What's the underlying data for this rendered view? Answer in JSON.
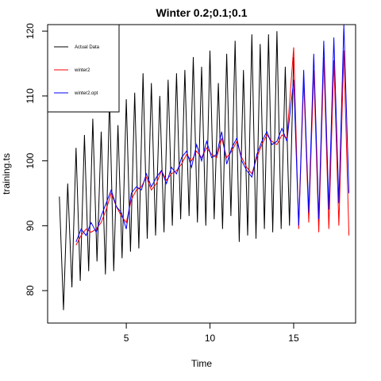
{
  "chart_data": {
    "type": "line",
    "title": "Winter 0.2;0.1;0.1",
    "xlabel": "Time",
    "ylabel": "training.ts",
    "xlim": [
      0.3,
      18.7
    ],
    "ylim": [
      75,
      121
    ],
    "xticks": [
      5,
      10,
      15
    ],
    "yticks": [
      80,
      90,
      100,
      110,
      120
    ],
    "grid": false,
    "legend": {
      "placement": "top-left",
      "entries": [
        {
          "name": "Actual Data",
          "color": "#000000"
        },
        {
          "name": "winter2",
          "color": "#ff0000"
        },
        {
          "name": "winter2.opt",
          "color": "#0000ff"
        }
      ]
    },
    "series": [
      {
        "name": "Actual Data",
        "color": "#000000",
        "x": [
          1.0,
          1.25,
          1.5,
          1.75,
          2.0,
          2.25,
          2.5,
          2.75,
          3.0,
          3.25,
          3.5,
          3.75,
          4.0,
          4.25,
          4.5,
          4.75,
          5.0,
          5.25,
          5.5,
          5.75,
          6.0,
          6.25,
          6.5,
          6.75,
          7.0,
          7.25,
          7.5,
          7.75,
          8.0,
          8.25,
          8.5,
          8.75,
          9.0,
          9.25,
          9.5,
          9.75,
          10.0,
          10.25,
          10.5,
          10.75,
          11.0,
          11.25,
          11.5,
          11.75,
          12.0,
          12.25,
          12.5,
          12.75,
          13.0,
          13.25,
          13.5,
          13.75,
          14.0,
          14.25,
          14.5,
          14.75,
          15.0
        ],
        "y": [
          94.5,
          77.0,
          96.5,
          80.5,
          102.0,
          81.5,
          104.0,
          83.0,
          106.5,
          84.5,
          104.5,
          82.5,
          110.0,
          83.0,
          105.5,
          85.0,
          109.5,
          86.0,
          110.5,
          86.5,
          113.5,
          88.0,
          112.0,
          88.5,
          110.0,
          89.0,
          112.5,
          90.0,
          113.5,
          91.0,
          114.0,
          91.5,
          116.0,
          90.5,
          114.5,
          90.0,
          117.0,
          91.0,
          112.0,
          89.5,
          116.5,
          91.5,
          118.5,
          87.5,
          114.0,
          88.5,
          119.5,
          88.0,
          118.0,
          89.5,
          119.5,
          89.0,
          120.0,
          89.5,
          114.5,
          90.0,
          116.0
        ]
      },
      {
        "name": "winter2",
        "color": "#ff0000",
        "x": [
          2.0,
          2.3,
          2.6,
          2.9,
          3.2,
          3.5,
          3.8,
          4.1,
          4.4,
          4.7,
          5.0,
          5.3,
          5.6,
          5.9,
          6.2,
          6.5,
          6.8,
          7.1,
          7.4,
          7.7,
          8.0,
          8.3,
          8.6,
          8.9,
          9.2,
          9.5,
          9.8,
          10.1,
          10.4,
          10.7,
          11.0,
          11.3,
          11.6,
          11.9,
          12.2,
          12.5,
          12.8,
          13.1,
          13.4,
          13.7,
          14.0,
          14.3,
          14.6,
          15.0,
          15.3,
          15.6,
          15.9,
          16.2,
          16.5,
          16.8,
          17.1,
          17.4,
          17.7,
          18.0,
          18.3
        ],
        "y": [
          87.0,
          88.5,
          89.5,
          89.0,
          89.5,
          90.5,
          92.5,
          95.0,
          93.0,
          91.5,
          90.5,
          94.0,
          95.5,
          96.0,
          97.5,
          95.5,
          96.5,
          98.5,
          97.0,
          98.0,
          98.5,
          99.5,
          101.0,
          100.0,
          101.5,
          100.5,
          102.0,
          101.0,
          100.5,
          103.5,
          100.5,
          101.5,
          103.0,
          100.5,
          99.0,
          98.0,
          100.5,
          102.5,
          104.0,
          103.0,
          102.5,
          104.0,
          103.5,
          117.5,
          89.5,
          112.5,
          90.5,
          114.0,
          89.0,
          116.0,
          89.5,
          115.5,
          90.0,
          117.0,
          88.5
        ]
      },
      {
        "name": "winter2.opt",
        "color": "#0000ff",
        "x": [
          2.0,
          2.3,
          2.6,
          2.9,
          3.2,
          3.5,
          3.8,
          4.1,
          4.4,
          4.7,
          5.0,
          5.3,
          5.6,
          5.9,
          6.2,
          6.5,
          6.8,
          7.1,
          7.4,
          7.7,
          8.0,
          8.3,
          8.6,
          8.9,
          9.2,
          9.5,
          9.8,
          10.1,
          10.4,
          10.7,
          11.0,
          11.3,
          11.6,
          11.9,
          12.2,
          12.5,
          12.8,
          13.1,
          13.4,
          13.7,
          14.0,
          14.3,
          14.6,
          15.0,
          15.3,
          15.6,
          15.9,
          16.2,
          16.5,
          16.8,
          17.1,
          17.4,
          17.7,
          18.0,
          18.3
        ],
        "y": [
          87.5,
          89.5,
          88.5,
          90.5,
          89.0,
          91.5,
          93.5,
          95.5,
          93.0,
          92.0,
          89.5,
          95.0,
          96.0,
          95.5,
          98.0,
          96.0,
          97.5,
          98.5,
          96.5,
          99.0,
          98.0,
          100.5,
          101.5,
          99.0,
          102.5,
          100.0,
          103.0,
          100.5,
          101.0,
          104.5,
          99.5,
          102.0,
          103.5,
          100.0,
          98.5,
          97.5,
          101.0,
          103.0,
          104.5,
          102.5,
          103.0,
          105.0,
          103.0,
          112.5,
          90.0,
          114.0,
          92.0,
          116.5,
          91.0,
          118.5,
          92.5,
          119.0,
          93.5,
          121.0,
          95.0
        ]
      }
    ]
  }
}
